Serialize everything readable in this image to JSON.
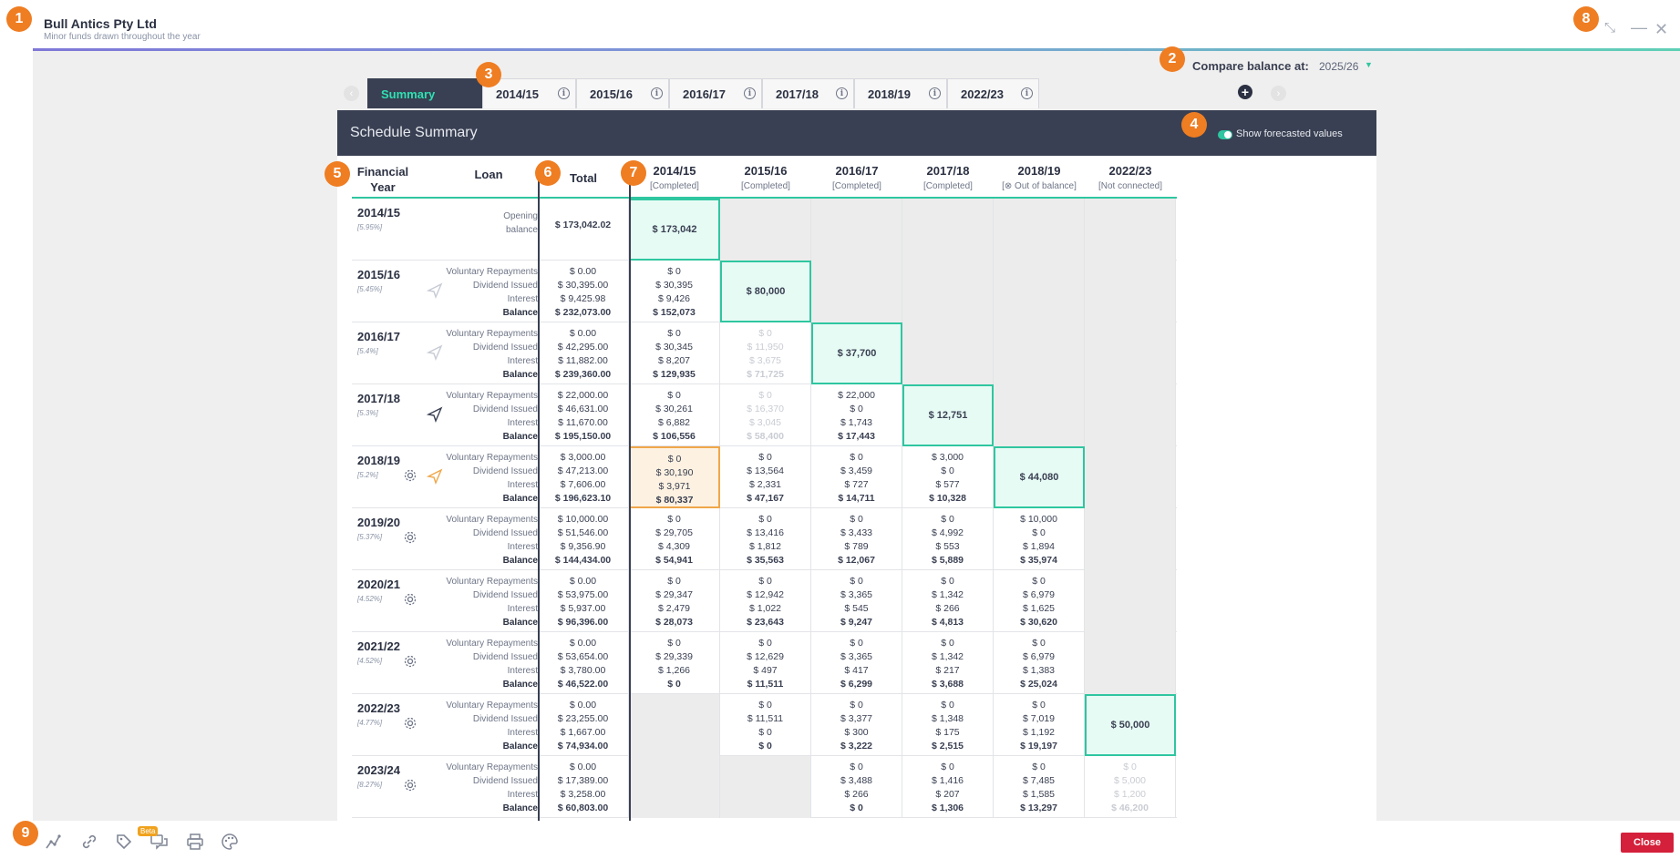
{
  "header": {
    "company": "Bull Antics Pty Ltd",
    "subtitle": "Minor funds drawn throughout the year",
    "compare_label": "Compare balance at:",
    "compare_value": "2025/26"
  },
  "tabs": [
    "Summary",
    "2014/15",
    "2015/16",
    "2016/17",
    "2017/18",
    "2018/19",
    "2022/23"
  ],
  "panel": {
    "title": "Schedule Summary",
    "toggle_label": "Show forecasted values",
    "toggle_on": true
  },
  "columns": {
    "financial_year": "Financial Year",
    "loan": "Loan",
    "total": "Total",
    "years": [
      {
        "year": "2014/15",
        "status": "[Completed]"
      },
      {
        "year": "2015/16",
        "status": "[Completed]"
      },
      {
        "year": "2016/17",
        "status": "[Completed]"
      },
      {
        "year": "2017/18",
        "status": "[Completed]"
      },
      {
        "year": "2018/19",
        "status": "[⊗ Out of balance]"
      },
      {
        "year": "2022/23",
        "status": "[Not connected]"
      }
    ]
  },
  "row_labels": [
    "Voluntary Repayments",
    "Dividend Issued",
    "Interest",
    "Balance"
  ],
  "opening_label": [
    "Opening",
    "balance"
  ],
  "rows": [
    {
      "year": "2014/15",
      "rate": "[5.95%]",
      "icon": "",
      "total": [
        "$ 173,042.02"
      ],
      "opening": true,
      "cells": [
        {
          "hl": "$ 173,042"
        },
        {
          "gray": true
        },
        {
          "gray": true
        },
        {
          "gray": true
        },
        {
          "gray": true
        },
        {
          "gray": true
        }
      ]
    },
    {
      "year": "2015/16",
      "rate": "[5.45%]",
      "icon": "send-light",
      "total": [
        "$ 0.00",
        "$ 30,395.00",
        "$ 9,425.98",
        "$ 232,073.00"
      ],
      "cells": [
        {
          "v": [
            "$ 0",
            "$ 30,395",
            "$ 9,426",
            "$ 152,073"
          ]
        },
        {
          "hl": "$ 80,000"
        },
        {
          "gray": true
        },
        {
          "gray": true
        },
        {
          "gray": true
        },
        {
          "gray": true
        }
      ]
    },
    {
      "year": "2016/17",
      "rate": "[5.4%]",
      "icon": "send-light",
      "total": [
        "$ 0.00",
        "$ 42,295.00",
        "$ 11,882.00",
        "$ 239,360.00"
      ],
      "cells": [
        {
          "v": [
            "$ 0",
            "$ 30,345",
            "$ 8,207",
            "$ 129,935"
          ]
        },
        {
          "v": [
            "$ 0",
            "$ 11,950",
            "$ 3,675",
            "$ 71,725"
          ],
          "faded": true
        },
        {
          "hl": "$ 37,700"
        },
        {
          "gray": true
        },
        {
          "gray": true
        },
        {
          "gray": true
        }
      ]
    },
    {
      "year": "2017/18",
      "rate": "[5.3%]",
      "icon": "send-dark",
      "total": [
        "$ 22,000.00",
        "$ 46,631.00",
        "$ 11,670.00",
        "$ 195,150.00"
      ],
      "cells": [
        {
          "v": [
            "$ 0",
            "$ 30,261",
            "$ 6,882",
            "$ 106,556"
          ]
        },
        {
          "v": [
            "$ 0",
            "$ 16,370",
            "$ 3,045",
            "$ 58,400"
          ],
          "faded": true
        },
        {
          "v": [
            "$ 22,000",
            "$ 0",
            "$ 1,743",
            "$ 17,443"
          ]
        },
        {
          "hl": "$ 12,751"
        },
        {
          "gray": true
        },
        {
          "gray": true
        }
      ]
    },
    {
      "year": "2018/19",
      "rate": "[5.2%]",
      "icon": "gear-send",
      "total": [
        "$ 3,000.00",
        "$ 47,213.00",
        "$ 7,606.00",
        "$ 196,623.10"
      ],
      "cells": [
        {
          "v": [
            "$ 0",
            "$ 30,190",
            "$ 3,971",
            "$ 80,337"
          ],
          "orange": true
        },
        {
          "v": [
            "$ 0",
            "$ 13,564",
            "$ 2,331",
            "$ 47,167"
          ]
        },
        {
          "v": [
            "$ 0",
            "$ 3,459",
            "$ 727",
            "$ 14,711"
          ]
        },
        {
          "v": [
            "$ 3,000",
            "$ 0",
            "$ 577",
            "$ 10,328"
          ]
        },
        {
          "hl": "$ 44,080"
        },
        {
          "gray": true
        }
      ]
    },
    {
      "year": "2019/20",
      "rate": "[5.37%]",
      "icon": "gear",
      "total": [
        "$ 10,000.00",
        "$ 51,546.00",
        "$ 9,356.90",
        "$ 144,434.00"
      ],
      "cells": [
        {
          "v": [
            "$ 0",
            "$ 29,705",
            "$ 4,309",
            "$ 54,941"
          ]
        },
        {
          "v": [
            "$ 0",
            "$ 13,416",
            "$ 1,812",
            "$ 35,563"
          ]
        },
        {
          "v": [
            "$ 0",
            "$ 3,433",
            "$ 789",
            "$ 12,067"
          ]
        },
        {
          "v": [
            "$ 0",
            "$ 4,992",
            "$ 553",
            "$ 5,889"
          ]
        },
        {
          "v": [
            "$ 10,000",
            "$ 0",
            "$ 1,894",
            "$ 35,974"
          ]
        },
        {
          "gray": true
        }
      ]
    },
    {
      "year": "2020/21",
      "rate": "[4.52%]",
      "icon": "gear",
      "total": [
        "$ 0.00",
        "$ 53,975.00",
        "$ 5,937.00",
        "$ 96,396.00"
      ],
      "cells": [
        {
          "v": [
            "$ 0",
            "$ 29,347",
            "$ 2,479",
            "$ 28,073"
          ]
        },
        {
          "v": [
            "$ 0",
            "$ 12,942",
            "$ 1,022",
            "$ 23,643"
          ]
        },
        {
          "v": [
            "$ 0",
            "$ 3,365",
            "$ 545",
            "$ 9,247"
          ]
        },
        {
          "v": [
            "$ 0",
            "$ 1,342",
            "$ 266",
            "$ 4,813"
          ]
        },
        {
          "v": [
            "$ 0",
            "$ 6,979",
            "$ 1,625",
            "$ 30,620"
          ]
        },
        {
          "gray": true
        }
      ]
    },
    {
      "year": "2021/22",
      "rate": "[4.52%]",
      "icon": "gear",
      "total": [
        "$ 0.00",
        "$ 53,654.00",
        "$ 3,780.00",
        "$ 46,522.00"
      ],
      "cells": [
        {
          "v": [
            "$ 0",
            "$ 29,339",
            "$ 1,266",
            "$ 0"
          ]
        },
        {
          "v": [
            "$ 0",
            "$ 12,629",
            "$ 497",
            "$ 11,511"
          ]
        },
        {
          "v": [
            "$ 0",
            "$ 3,365",
            "$ 417",
            "$ 6,299"
          ]
        },
        {
          "v": [
            "$ 0",
            "$ 1,342",
            "$ 217",
            "$ 3,688"
          ]
        },
        {
          "v": [
            "$ 0",
            "$ 6,979",
            "$ 1,383",
            "$ 25,024"
          ]
        },
        {
          "gray": true
        }
      ]
    },
    {
      "year": "2022/23",
      "rate": "[4.77%]",
      "icon": "gear",
      "total": [
        "$ 0.00",
        "$ 23,255.00",
        "$ 1,667.00",
        "$ 74,934.00"
      ],
      "cells": [
        {
          "gray": true
        },
        {
          "v": [
            "$ 0",
            "$ 11,511",
            "$ 0",
            "$ 0"
          ]
        },
        {
          "v": [
            "$ 0",
            "$ 3,377",
            "$ 300",
            "$ 3,222"
          ]
        },
        {
          "v": [
            "$ 0",
            "$ 1,348",
            "$ 175",
            "$ 2,515"
          ]
        },
        {
          "v": [
            "$ 0",
            "$ 7,019",
            "$ 1,192",
            "$ 19,197"
          ]
        },
        {
          "hl": "$ 50,000"
        }
      ]
    },
    {
      "year": "2023/24",
      "rate": "[8.27%]",
      "icon": "gear",
      "total": [
        "$ 0.00",
        "$ 17,389.00",
        "$ 3,258.00",
        "$ 60,803.00"
      ],
      "cells": [
        {
          "gray": true
        },
        {
          "gray": true
        },
        {
          "v": [
            "$ 0",
            "$ 3,488",
            "$ 266",
            "$ 0"
          ]
        },
        {
          "v": [
            "$ 0",
            "$ 1,416",
            "$ 207",
            "$ 1,306"
          ]
        },
        {
          "v": [
            "$ 0",
            "$ 7,485",
            "$ 1,585",
            "$ 13,297"
          ]
        },
        {
          "v": [
            "$ 0",
            "$ 5,000",
            "$ 1,200",
            "$ 46,200"
          ],
          "faded": true
        }
      ]
    }
  ],
  "toolbar": {
    "beta": "Beta",
    "close": "Close",
    "icons": [
      "chart-line-icon",
      "link-icon",
      "tag-icon",
      "chat-icon",
      "print-icon",
      "palette-icon"
    ]
  },
  "badges": [
    "1",
    "2",
    "3",
    "4",
    "5",
    "6",
    "7",
    "8",
    "9"
  ],
  "accent": "#2fc6a0",
  "header_dark": "#394053",
  "close_red": "#d4203a",
  "badge_orange": "#ef7d22"
}
